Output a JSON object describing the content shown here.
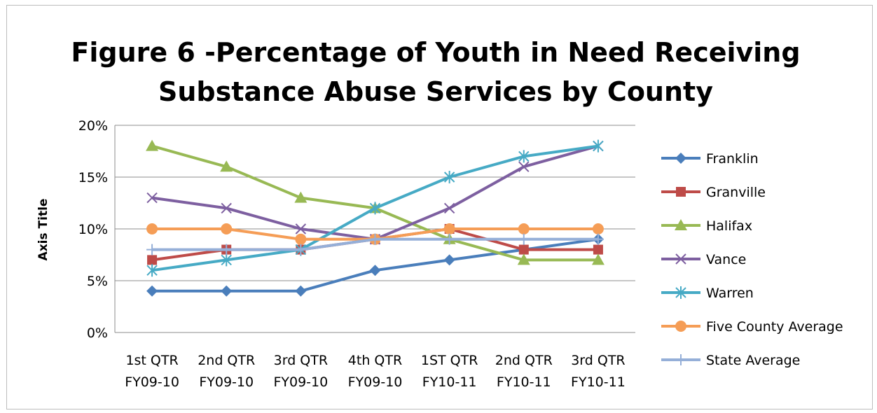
{
  "chart_data": {
    "type": "line",
    "title_lines": [
      "Figure 6 -Percentage of Youth in Need Receiving",
      "Substance Abuse Services by County"
    ],
    "ylabel": "Axis Title",
    "xlabel": "",
    "ylim": [
      0,
      20
    ],
    "yticks": [
      0,
      5,
      10,
      15,
      20
    ],
    "ytick_labels": [
      "0%",
      "5%",
      "10%",
      "15%",
      "20%"
    ],
    "grid": "horizontal",
    "legend_position": "right",
    "categories": [
      [
        "1st QTR",
        "FY09-10"
      ],
      [
        "2nd QTR",
        "FY09-10"
      ],
      [
        "3rd QTR",
        "FY09-10"
      ],
      [
        "4th QTR",
        "FY09-10"
      ],
      [
        "1ST QTR",
        "FY10-11"
      ],
      [
        "2nd QTR",
        "FY10-11"
      ],
      [
        "3rd QTR",
        "FY10-11"
      ]
    ],
    "series": [
      {
        "name": "Franklin",
        "color": "#4a7ebb",
        "marker": "diamond",
        "values": [
          4,
          4,
          4,
          6,
          7,
          8,
          9
        ]
      },
      {
        "name": "Granville",
        "color": "#be4b48",
        "marker": "square",
        "values": [
          7,
          8,
          8,
          9,
          10,
          8,
          8
        ]
      },
      {
        "name": "Halifax",
        "color": "#98b954",
        "marker": "triangle",
        "values": [
          18,
          16,
          13,
          12,
          9,
          7,
          7
        ]
      },
      {
        "name": "Vance",
        "color": "#7d5fa0",
        "marker": "x",
        "values": [
          13,
          12,
          10,
          9,
          12,
          16,
          18
        ]
      },
      {
        "name": "Warren",
        "color": "#46aac5",
        "marker": "asterisk",
        "values": [
          6,
          7,
          8,
          12,
          15,
          17,
          18
        ]
      },
      {
        "name": "Five County Average",
        "color": "#f59d56",
        "marker": "circle",
        "values": [
          10,
          10,
          9,
          9,
          10,
          10,
          10
        ]
      },
      {
        "name": "State Average",
        "color": "#95afd8",
        "marker": "plus",
        "values": [
          8,
          8,
          8,
          9,
          9,
          9,
          9
        ]
      }
    ]
  }
}
